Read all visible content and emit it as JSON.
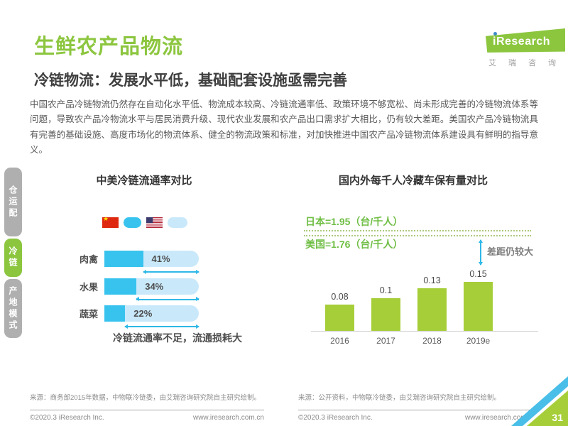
{
  "colors": {
    "brand_green": "#8CC63F",
    "bar_green": "#A6CE39",
    "cyan_dark": "#38C3EE",
    "cyan_light": "#C9E9FA",
    "arrow_cyan": "#2FB8E8",
    "annotation_green": "#6FBE44",
    "tab_gray": "#AFAFAF",
    "dotted_line_green": "#ACC97C"
  },
  "header": {
    "title": "生鲜农产品物流",
    "subtitle": "冷链物流：发展水平低，基础配套设施亟需完善",
    "logo_text": "iResearch",
    "logo_cn": "艾瑞咨询"
  },
  "sidebar": {
    "tabs": [
      {
        "label": "仓运配",
        "active": false
      },
      {
        "label": "冷链",
        "active": true
      },
      {
        "label": "产地模式",
        "active": false
      }
    ]
  },
  "body_paragraph": "中国农产品冷链物流仍然存在自动化水平低、物流成本较高、冷链流通率低、政策环境不够宽松、尚未形成完善的冷链物流体系等问题，导致农产品冷物流水平与居民消费升级、现代农业发展和农产品出口需求扩大相比，仍有较大差距。美国农产品冷链物流具有完善的基础设施、高度市场化的物流体系、健全的物流政策和标准，对加快推进中国农产品冷链物流体系建设具有鲜明的指导意义。",
  "chart_data": [
    {
      "type": "bar",
      "orientation": "horizontal",
      "title": "中美冷链流通率对比",
      "legend": [
        {
          "icon": "china-flag",
          "swatch": "cyan_dark"
        },
        {
          "icon": "usa-flag",
          "swatch": "cyan_light"
        }
      ],
      "categories": [
        "肉禽",
        "水果",
        "蔬菜"
      ],
      "values": [
        41,
        34,
        22
      ],
      "value_labels": [
        "41%",
        "34%",
        "22%"
      ],
      "xlim": [
        0,
        100
      ],
      "note": "冷链流通率不足，流通损耗大"
    },
    {
      "type": "bar",
      "orientation": "vertical",
      "title": "国内外每千人冷藏车保有量对比",
      "categories": [
        "2016",
        "2017",
        "2018",
        "2019e"
      ],
      "values": [
        0.08,
        0.1,
        0.13,
        0.15
      ],
      "value_labels": [
        "0.08",
        "0.1",
        "0.13",
        "0.15"
      ],
      "reference_lines": [
        {
          "label": "日本=1.95（台/千人）",
          "value": 1.95
        },
        {
          "label": "美国=1.76（台/千人）",
          "value": 1.76
        }
      ],
      "annotation": "差距仍较大",
      "ylim": [
        0,
        0.16
      ]
    }
  ],
  "footer": {
    "left_source": "来源：商务部2015年数据，中物联冷链委，由艾瑞咨询研究院自主研究绘制。",
    "right_source": "来源：公开资料，中物联冷链委，由艾瑞咨询研究院自主研究绘制。",
    "copyright": "©2020.3 iResearch Inc.",
    "website": "www.iresearch.com.cn",
    "page_number": "31"
  }
}
